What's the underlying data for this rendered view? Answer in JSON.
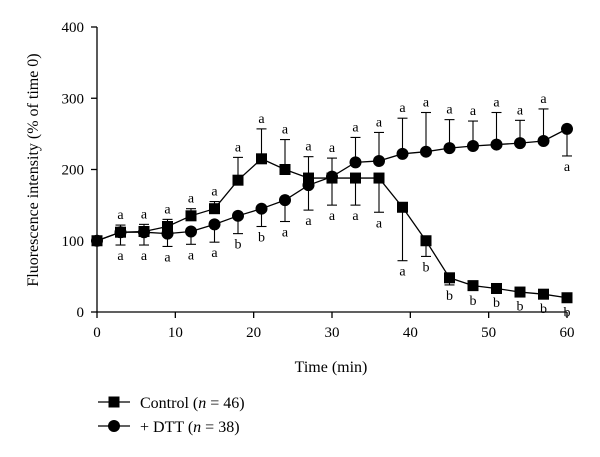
{
  "chart_data": {
    "type": "line",
    "title": "",
    "xlabel": "Time (min)",
    "ylabel": "Fluorescence intensity (% of time 0)",
    "xlim": [
      0,
      60
    ],
    "ylim": [
      0,
      400
    ],
    "xticks": [
      0,
      10,
      20,
      30,
      40,
      50,
      60
    ],
    "yticks": [
      0,
      100,
      200,
      300,
      400
    ],
    "grid": false,
    "legend_position": "bottom-left",
    "series": [
      {
        "name_prefix": "Control (",
        "name_n": "n",
        "name_suffix": " = 46)",
        "marker": "square",
        "color": "#000000",
        "x": [
          0,
          3,
          6,
          9,
          12,
          15,
          18,
          21,
          24,
          27,
          30,
          33,
          36,
          39,
          42,
          45,
          48,
          51,
          54,
          57,
          60
        ],
        "y": [
          100,
          112,
          113,
          120,
          135,
          145,
          185,
          215,
          200,
          188,
          188,
          188,
          188,
          147,
          100,
          48,
          37,
          33,
          28,
          25,
          20
        ],
        "err": [
          0,
          10,
          10,
          10,
          10,
          10,
          32,
          42,
          42,
          30,
          28,
          38,
          48,
          75,
          22,
          10,
          6,
          5,
          5,
          5,
          5
        ],
        "err_dir": [
          "none",
          "up",
          "up",
          "up",
          "up",
          "up",
          "up",
          "up",
          "up",
          "up",
          "up",
          "down",
          "down",
          "down",
          "down",
          "down",
          "down",
          "down",
          "down",
          "down",
          "down"
        ],
        "labels": [
          "",
          "a",
          "a",
          "a",
          "a",
          "a",
          "a",
          "a",
          "a",
          "a",
          "a",
          "a",
          "a",
          "a",
          "b",
          "b",
          "b",
          "b",
          "b",
          "b",
          "b"
        ]
      },
      {
        "name_prefix": "+ DTT (",
        "name_n": "n",
        "name_suffix": " = 38)",
        "marker": "circle",
        "color": "#000000",
        "x": [
          0,
          3,
          6,
          9,
          12,
          15,
          18,
          21,
          24,
          27,
          30,
          33,
          36,
          39,
          42,
          45,
          48,
          51,
          54,
          57,
          60
        ],
        "y": [
          100,
          112,
          112,
          110,
          113,
          123,
          135,
          145,
          157,
          178,
          190,
          210,
          212,
          222,
          225,
          230,
          233,
          235,
          237,
          240,
          257
        ],
        "err": [
          0,
          18,
          18,
          18,
          18,
          25,
          25,
          25,
          30,
          35,
          40,
          35,
          40,
          50,
          55,
          40,
          35,
          45,
          32,
          45,
          38
        ],
        "err_dir": [
          "none",
          "down",
          "down",
          "down",
          "down",
          "down",
          "down",
          "down",
          "down",
          "down",
          "down",
          "up",
          "up",
          "up",
          "up",
          "up",
          "up",
          "up",
          "up",
          "up",
          "down"
        ],
        "labels": [
          "",
          "a",
          "a",
          "a",
          "a",
          "a",
          "b",
          "b",
          "a",
          "a",
          "a",
          "a",
          "a",
          "a",
          "a",
          "a",
          "a",
          "a",
          "a",
          "a",
          "a"
        ]
      }
    ]
  }
}
